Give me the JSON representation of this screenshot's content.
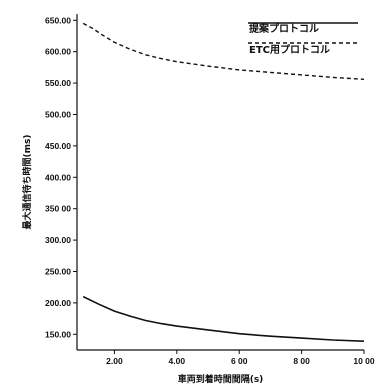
{
  "chart_data": {
    "type": "line",
    "title": "",
    "xlabel": "車両到着時間間隔(s)",
    "ylabel": "最大通信待ち時間(ms)",
    "xlim": [
      0.8,
      10.0
    ],
    "ylim": [
      125,
      660
    ],
    "x_ticks": [
      {
        "value": 2,
        "label": "2.00"
      },
      {
        "value": 4,
        "label": "4.00"
      },
      {
        "value": 6,
        "label": "6 00"
      },
      {
        "value": 8,
        "label": "8 00"
      },
      {
        "value": 10,
        "label": "10 00"
      }
    ],
    "y_ticks": [
      {
        "value": 150,
        "label": "150.00"
      },
      {
        "value": 200,
        "label": "200.00"
      },
      {
        "value": 250,
        "label": "250.00"
      },
      {
        "value": 300,
        "label": "300.00"
      },
      {
        "value": 350,
        "label": "350 00"
      },
      {
        "value": 400,
        "label": "400.00"
      },
      {
        "value": 450,
        "label": "450.00"
      },
      {
        "value": 500,
        "label": "500.00"
      },
      {
        "value": 550,
        "label": "550.00"
      },
      {
        "value": 600,
        "label": "600.00"
      },
      {
        "value": 650,
        "label": "650.00"
      }
    ],
    "grid": false,
    "legend_position": "top-right",
    "series": [
      {
        "name": "提案プロトコル",
        "style": "solid",
        "color": "#111111",
        "x": [
          1.0,
          1.5,
          2.0,
          2.5,
          3.0,
          3.5,
          4.0,
          5.0,
          6.0,
          7.0,
          8.0,
          9.0,
          10.0
        ],
        "y": [
          210,
          198,
          187,
          179,
          172,
          167,
          163,
          157,
          151,
          147,
          144,
          141,
          139
        ]
      },
      {
        "name": "ETC用プロトコル",
        "style": "dashed",
        "color": "#111111",
        "x": [
          1.0,
          1.3,
          1.6,
          2.0,
          2.5,
          3.0,
          3.5,
          4.0,
          5.0,
          6.0,
          7.0,
          8.0,
          9.0,
          10.0
        ],
        "y": [
          645,
          637,
          627,
          615,
          604,
          595,
          589,
          584,
          577,
          571,
          567,
          563,
          559,
          556
        ]
      }
    ]
  }
}
